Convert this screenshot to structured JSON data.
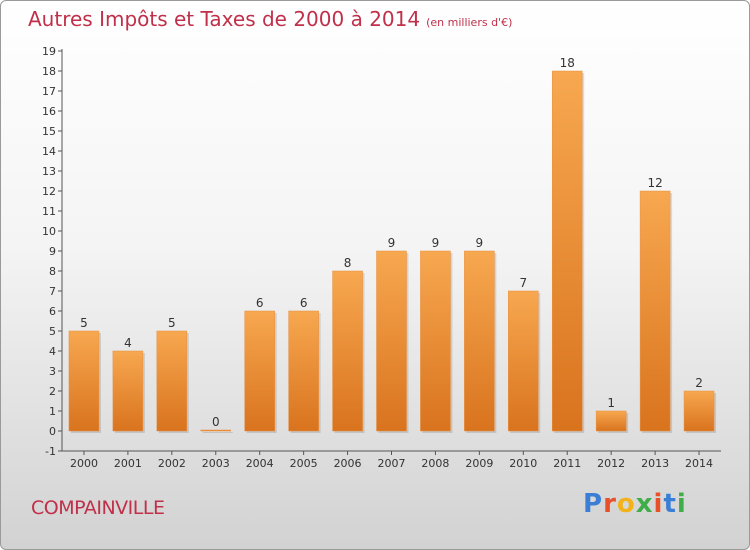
{
  "header": {
    "title": "Autres Impôts et Taxes de 2000 à 2014",
    "subtitle": "(en milliers d'€)"
  },
  "footer": {
    "commune": "COMPAINVILLE",
    "logo_letters": [
      "P",
      "r",
      "o",
      "x",
      "i",
      "t",
      "i"
    ]
  },
  "colors": {
    "title": "#c0304a",
    "bar_top": "#f7a850",
    "bar_bottom": "#d9731e",
    "logo": [
      "#3a7fd5",
      "#e8502a",
      "#f2b21a",
      "#3fae49",
      "#e8502a",
      "#3a7fd5",
      "#3fae49"
    ]
  },
  "chart_data": {
    "type": "bar",
    "categories": [
      "2000",
      "2001",
      "2002",
      "2003",
      "2004",
      "2005",
      "2006",
      "2007",
      "2008",
      "2009",
      "2010",
      "2011",
      "2012",
      "2013",
      "2014"
    ],
    "values": [
      5,
      4,
      5,
      0,
      6,
      6,
      8,
      9,
      9,
      9,
      7,
      18,
      1,
      12,
      2
    ],
    "value_labels": [
      "5",
      "4",
      "5",
      "0",
      "6",
      "6",
      "8",
      "9",
      "9",
      "9",
      "7",
      "18",
      "1",
      "12",
      "2"
    ],
    "yticks": [
      "-1",
      "0",
      "1",
      "2",
      "3",
      "4",
      "5",
      "6",
      "7",
      "8",
      "9",
      "10",
      "11",
      "12",
      "13",
      "14",
      "15",
      "16",
      "17",
      "18",
      "19"
    ],
    "ylim": [
      -1,
      19
    ],
    "grid": false,
    "legend": "none"
  }
}
